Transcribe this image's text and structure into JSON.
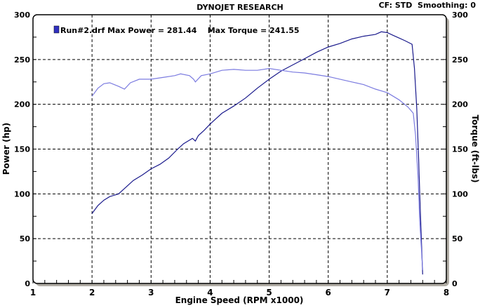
{
  "chart_data": {
    "type": "line",
    "title": "DYNOJET RESEARCH",
    "header_right": "CF: STD  Smoothing: 0",
    "xlabel": "Engine Speed (RPM x1000)",
    "ylabel": "Power (hp)",
    "y2label": "Torque (ft-lbs)",
    "xlim": [
      1,
      8
    ],
    "ylim": [
      0,
      300
    ],
    "y2lim": [
      0,
      300
    ],
    "xticks": [
      "1",
      "2",
      "3",
      "4",
      "5",
      "6",
      "7",
      "8"
    ],
    "yticks": [
      "0",
      "50",
      "100",
      "150",
      "200",
      "250",
      "300"
    ],
    "grid": true,
    "legend": {
      "position": "top-left",
      "text": "Run#2.drf Max Power = 281.44    Max Torque = 241.55"
    },
    "colors": {
      "power": "#1a1a8c",
      "torque": "#7b7be0",
      "shadow": "#b0aca4"
    },
    "series": [
      {
        "name": "Power (hp)",
        "x": [
          2.0,
          2.1,
          2.2,
          2.3,
          2.45,
          2.55,
          2.7,
          2.85,
          3.0,
          3.15,
          3.3,
          3.45,
          3.55,
          3.7,
          3.75,
          3.8,
          3.9,
          4.0,
          4.2,
          4.4,
          4.6,
          4.8,
          5.0,
          5.2,
          5.4,
          5.6,
          5.8,
          6.0,
          6.2,
          6.4,
          6.6,
          6.8,
          6.9,
          7.0,
          7.1,
          7.2,
          7.3,
          7.42,
          7.46,
          7.5,
          7.53,
          7.56,
          7.6
        ],
        "y": [
          78,
          87,
          93,
          97,
          100,
          106,
          115,
          121,
          128,
          133,
          140,
          150,
          156,
          162,
          159,
          165,
          171,
          178,
          190,
          198,
          207,
          218,
          228,
          237,
          244,
          251,
          258,
          264,
          268,
          273,
          276,
          278,
          281,
          280,
          277,
          274,
          271,
          267,
          240,
          195,
          140,
          80,
          10
        ]
      },
      {
        "name": "Torque (ft-lbs)",
        "x": [
          2.0,
          2.1,
          2.2,
          2.3,
          2.45,
          2.55,
          2.65,
          2.8,
          3.0,
          3.2,
          3.4,
          3.5,
          3.65,
          3.72,
          3.75,
          3.85,
          4.0,
          4.2,
          4.4,
          4.6,
          4.8,
          5.0,
          5.2,
          5.4,
          5.6,
          5.8,
          6.0,
          6.2,
          6.4,
          6.6,
          6.8,
          7.0,
          7.2,
          7.35,
          7.44,
          7.48,
          7.52,
          7.55,
          7.6
        ],
        "y": [
          209,
          218,
          223,
          224,
          220,
          217,
          224,
          228,
          228,
          230,
          232,
          234,
          232,
          228,
          225,
          232,
          234,
          238,
          239,
          238,
          238,
          240,
          238,
          236,
          235,
          233,
          231,
          228,
          225,
          222,
          217,
          213,
          205,
          197,
          190,
          165,
          120,
          70,
          15
        ]
      }
    ]
  }
}
